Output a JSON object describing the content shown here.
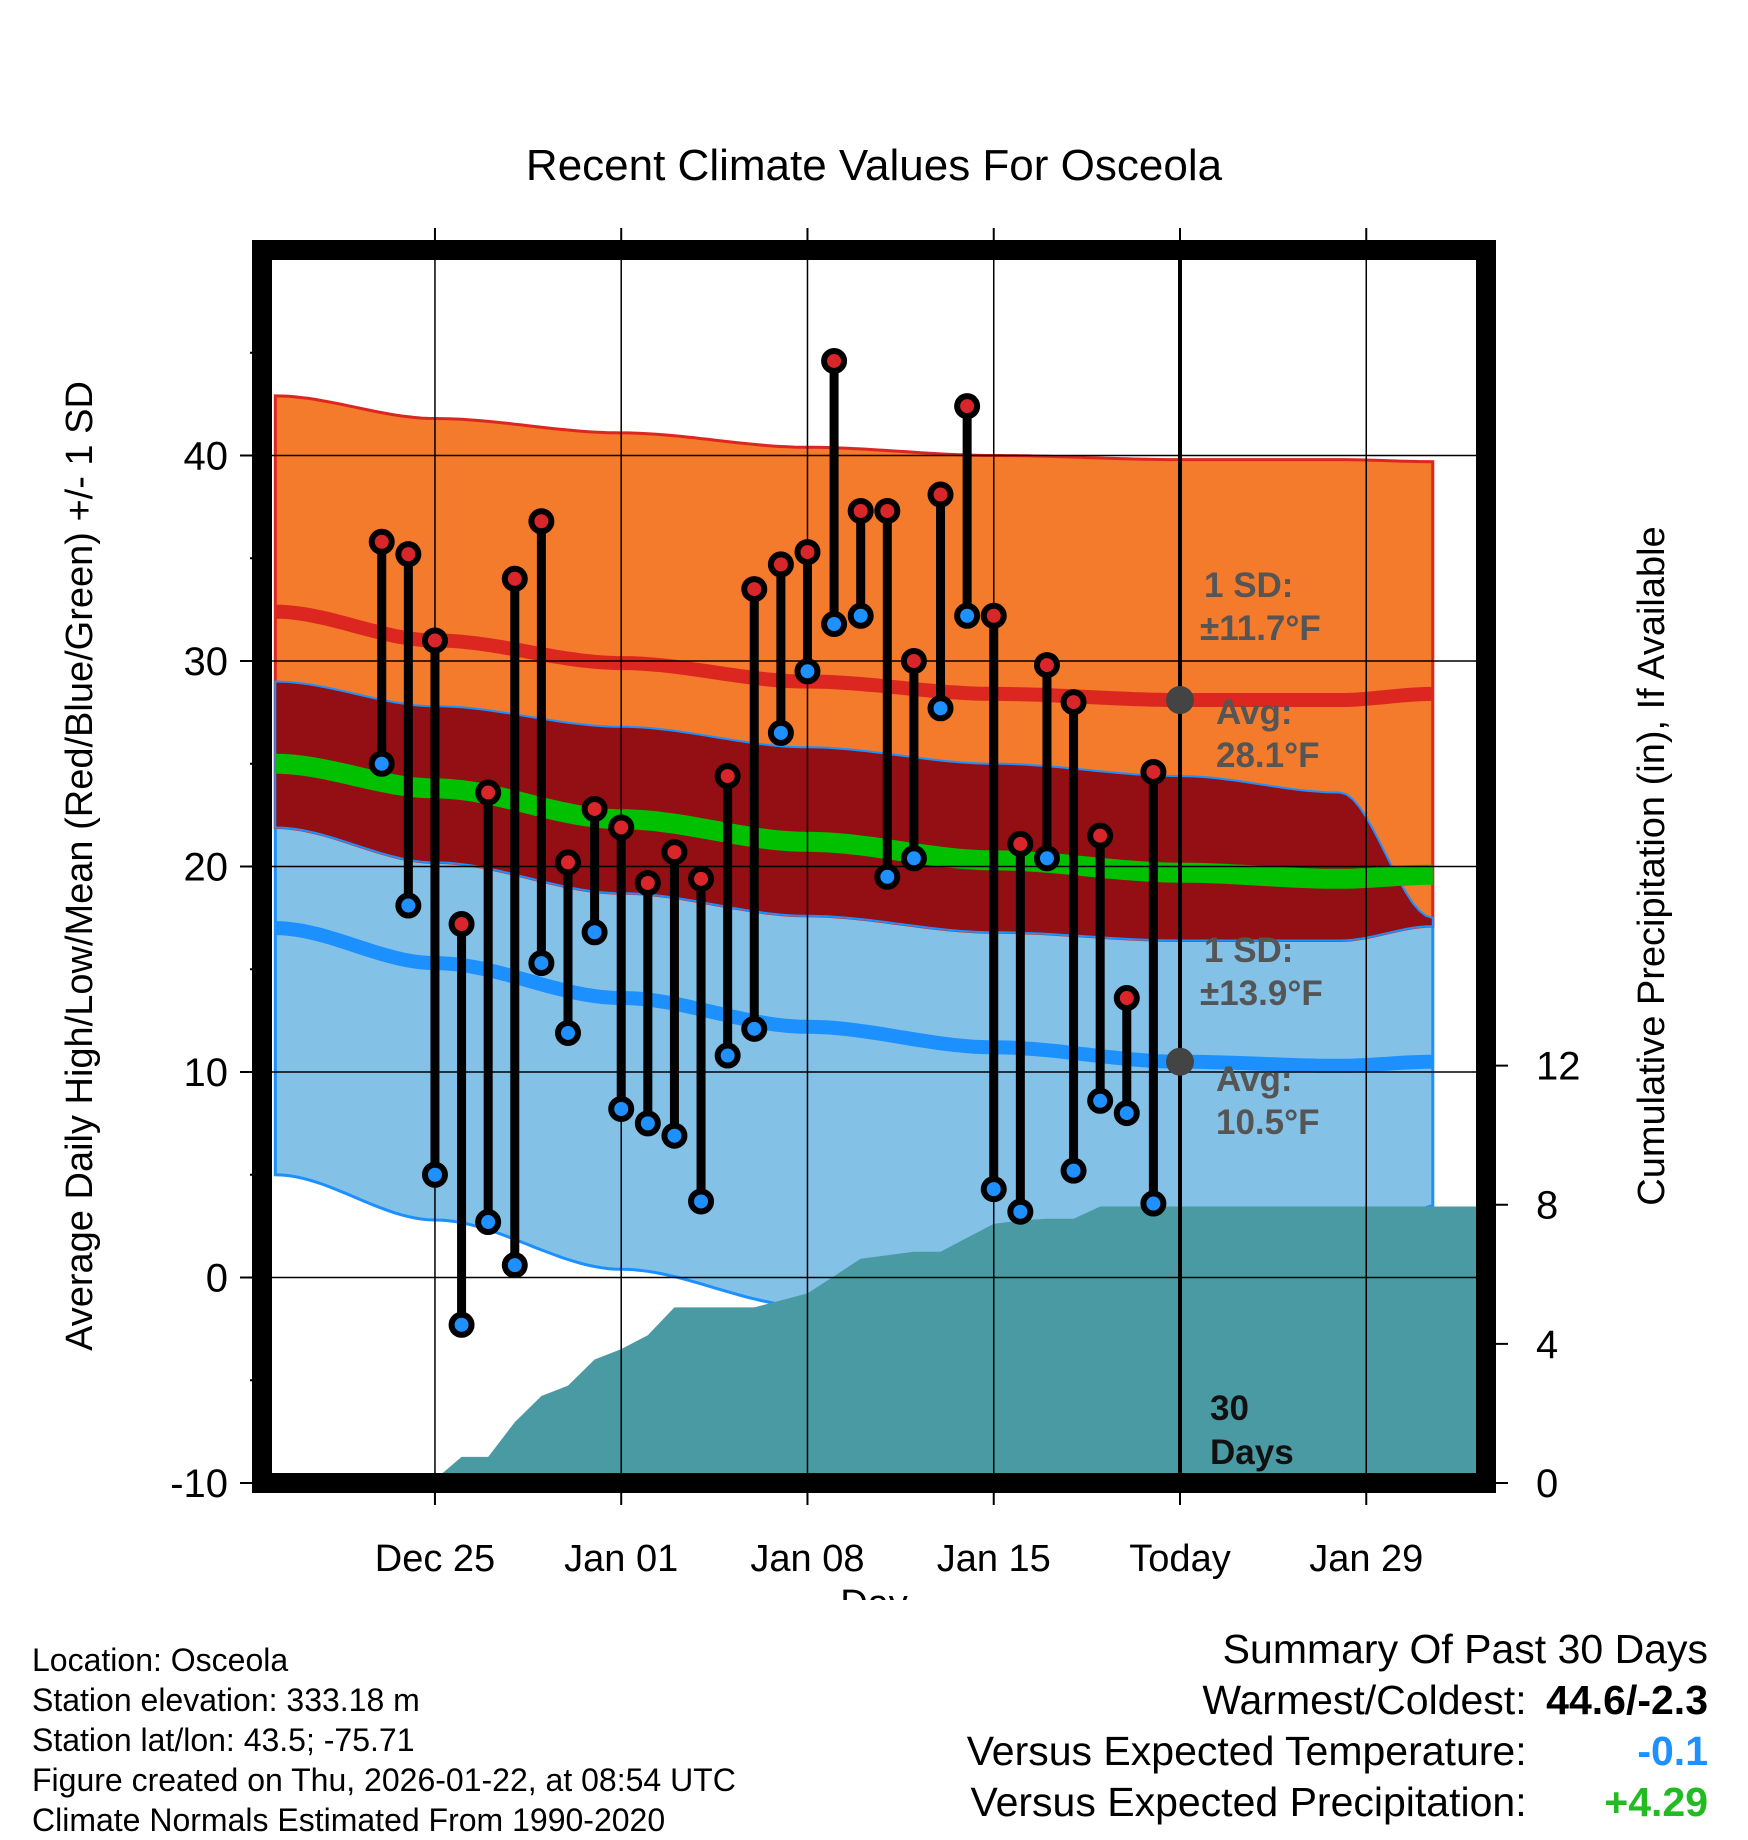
{
  "chart_data": {
    "type": "line",
    "title": "Recent Climate Values For Osceola",
    "xlabel": "Day",
    "ylabel": "Average Daily High/Low/Mean (Red/Blue/Green) +/- 1 SD",
    "y2label": "Cumulative Precipitation (in), If Available",
    "x_range_days": [
      -34.5,
      11.5
    ],
    "ylim": [
      -10,
      50
    ],
    "y2lim": [
      0,
      35.45
    ],
    "y_ticks": [
      -10,
      0,
      10,
      20,
      30,
      40
    ],
    "y2_ticks": [
      0,
      4,
      8,
      12
    ],
    "x_ticks": [
      {
        "day": -28,
        "label": "Dec 25"
      },
      {
        "day": -21,
        "label": "Jan 01"
      },
      {
        "day": -14,
        "label": "Jan 08"
      },
      {
        "day": -7,
        "label": "Jan 15"
      },
      {
        "day": 0,
        "label": "Today"
      },
      {
        "day": 7,
        "label": "Jan 29"
      }
    ],
    "normals": {
      "days": [
        -34,
        -28,
        -21,
        -14,
        -7,
        0,
        6,
        9.5
      ],
      "high_avg": [
        32.4,
        31.0,
        29.9,
        29.0,
        28.4,
        28.1,
        28.1,
        28.4
      ],
      "high_sd": [
        10.5,
        10.8,
        11.2,
        11.4,
        11.6,
        11.7,
        11.7,
        11.3
      ],
      "mean_avg": [
        25.0,
        23.8,
        22.3,
        21.2,
        20.3,
        19.7,
        19.4,
        19.6
      ],
      "low_avg": [
        17.0,
        15.3,
        13.6,
        12.2,
        11.2,
        10.5,
        10.3,
        10.5
      ],
      "low_sd": [
        12.0,
        12.5,
        13.2,
        13.6,
        13.8,
        13.9,
        13.3,
        7.0
      ]
    },
    "series": [
      {
        "name": "Observed High",
        "days": [
          -30,
          -29,
          -28,
          -27,
          -26,
          -25,
          -24,
          -23,
          -22,
          -21,
          -20,
          -19,
          -18,
          -17,
          -16,
          -15,
          -14,
          -13,
          -12,
          -11,
          -10,
          -9,
          -8,
          -7,
          -6,
          -5,
          -4,
          -3,
          -2,
          -1
        ],
        "values": [
          35.8,
          35.2,
          31.0,
          17.2,
          23.6,
          34.0,
          36.8,
          20.2,
          22.8,
          21.9,
          19.2,
          20.7,
          19.4,
          24.4,
          33.5,
          34.7,
          35.3,
          44.6,
          37.3,
          37.3,
          30.0,
          38.1,
          42.4,
          32.2,
          21.1,
          29.8,
          28.0,
          21.5,
          13.6,
          24.6
        ]
      },
      {
        "name": "Observed Low",
        "days": [
          -30,
          -29,
          -28,
          -27,
          -26,
          -25,
          -24,
          -23,
          -22,
          -21,
          -20,
          -19,
          -18,
          -17,
          -16,
          -15,
          -14,
          -13,
          -12,
          -11,
          -10,
          -9,
          -8,
          -7,
          -6,
          -5,
          -4,
          -3,
          -2,
          -1
        ],
        "values": [
          25.0,
          18.1,
          5.0,
          -2.3,
          2.7,
          0.6,
          15.3,
          11.9,
          16.8,
          8.2,
          7.5,
          6.9,
          3.7,
          10.8,
          12.1,
          26.5,
          29.5,
          31.8,
          32.2,
          19.5,
          20.4,
          27.7,
          32.2,
          4.3,
          3.2,
          20.4,
          5.2,
          8.6,
          8.0,
          3.6
        ]
      },
      {
        "name": "Cumulative Precipitation",
        "days": [
          -30,
          -28,
          -27,
          -26,
          -25,
          -24,
          -23,
          -22,
          -21,
          -20,
          -19,
          -18,
          -16,
          -15,
          -14,
          -13,
          -12,
          -11,
          -10,
          -9,
          -8,
          -7,
          -6,
          -5,
          -4,
          -3,
          11.5
        ],
        "values": [
          0.1,
          0.1,
          0.75,
          0.75,
          1.75,
          2.5,
          2.8,
          3.55,
          3.85,
          4.25,
          5.05,
          5.05,
          5.05,
          5.25,
          5.45,
          5.95,
          6.45,
          6.55,
          6.65,
          6.65,
          7.05,
          7.45,
          7.55,
          7.6,
          7.6,
          7.95,
          7.95
        ]
      }
    ],
    "annotations": {
      "high_sd_label": "1 SD:",
      "high_sd_value": "±11.7°F",
      "high_avg_label": "Avg:",
      "high_avg_value": "28.1°F",
      "low_sd_label": "1 SD:",
      "low_sd_value": "±13.9°F",
      "low_avg_label": "Avg:",
      "low_avg_value": "10.5°F",
      "window_label_number": "30",
      "window_label_unit": "Days"
    },
    "colors": {
      "high_band": "#f47a2c",
      "high_line": "#dc2620",
      "overlap_band": "#930f13",
      "mean_line": "#00c000",
      "low_band": "#84c1e7",
      "low_line": "#1c90ff",
      "precip": "#4a9aa3",
      "high_dot": "#d9262a",
      "low_dot": "#1e90ff",
      "marker": "#444444"
    }
  },
  "station": {
    "location": "Location: Osceola",
    "elevation": "Station elevation: 333.18 m",
    "latlon": "Station lat/lon: 43.5; -75.71",
    "created": "Figure created on Thu, 2026-01-22, at 08:54 UTC",
    "normals": "Climate Normals Estimated From 1990-2020"
  },
  "summary": {
    "title": "Summary Of Past 30 Days",
    "warm_cold_label": "Warmest/Coldest:",
    "warm_cold_value": "44.6/-2.3",
    "temp_label": "Versus Expected Temperature:",
    "temp_value": "-0.1",
    "temp_color": "#1e90ff",
    "precip_label": "Versus Expected Precipitation:",
    "precip_value": "+4.29",
    "precip_color": "#22bb22"
  }
}
